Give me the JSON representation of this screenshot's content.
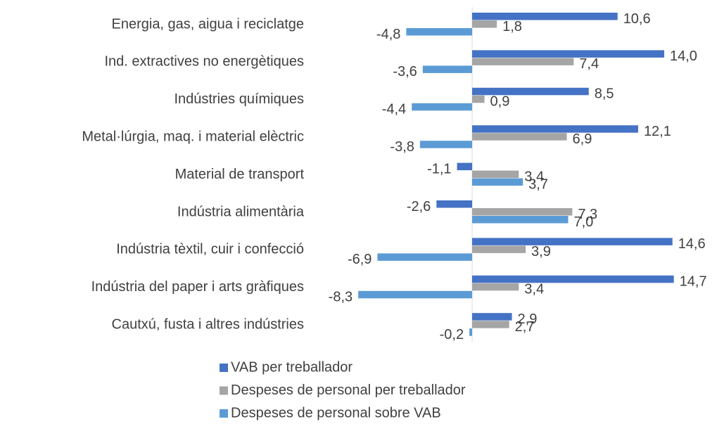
{
  "chart_data": {
    "type": "hbar",
    "categories": [
      "Energia, gas, aigua i reciclatge",
      "Ind. extractives no energètiques",
      "Indústries químiques",
      "Metal·lúrgia, maq. i material elèctric",
      "Material de transport",
      "Indústria alimentària",
      "Indústria tèxtil, cuir i confecció",
      "Indústria del paper i arts gràfiques",
      "Cautxú, fusta i altres indústries"
    ],
    "series": [
      {
        "name": "VAB per treballador",
        "color": "#4472c4",
        "values": [
          10.6,
          14.0,
          8.5,
          12.1,
          -1.1,
          -2.6,
          14.6,
          14.7,
          2.9
        ],
        "value_labels": [
          "10,6",
          "14,0",
          "8,5",
          "12,1",
          "-1,1",
          "-2,6",
          "14,6",
          "14,7",
          "2,9"
        ]
      },
      {
        "name": "Despeses de personal per treballador",
        "color": "#a5a5a5",
        "values": [
          1.8,
          7.4,
          0.9,
          6.9,
          3.4,
          7.3,
          3.9,
          3.4,
          2.7
        ],
        "value_labels": [
          "1,8",
          "7,4",
          "0,9",
          "6,9",
          "3,4",
          "7,3",
          "3,9",
          "3,4",
          "2,7"
        ]
      },
      {
        "name": "Despeses de personal sobre VAB",
        "color": "#5b9bd5",
        "values": [
          -4.8,
          -3.6,
          -4.4,
          -3.8,
          3.7,
          7.0,
          -6.9,
          -8.3,
          -0.2
        ],
        "value_labels": [
          "-4,8",
          "-3,6",
          "-4,4",
          "-3,8",
          "3,7",
          "7,0",
          "-6,9",
          "-8,3",
          "-0,2"
        ]
      }
    ],
    "legend": "bottom"
  }
}
